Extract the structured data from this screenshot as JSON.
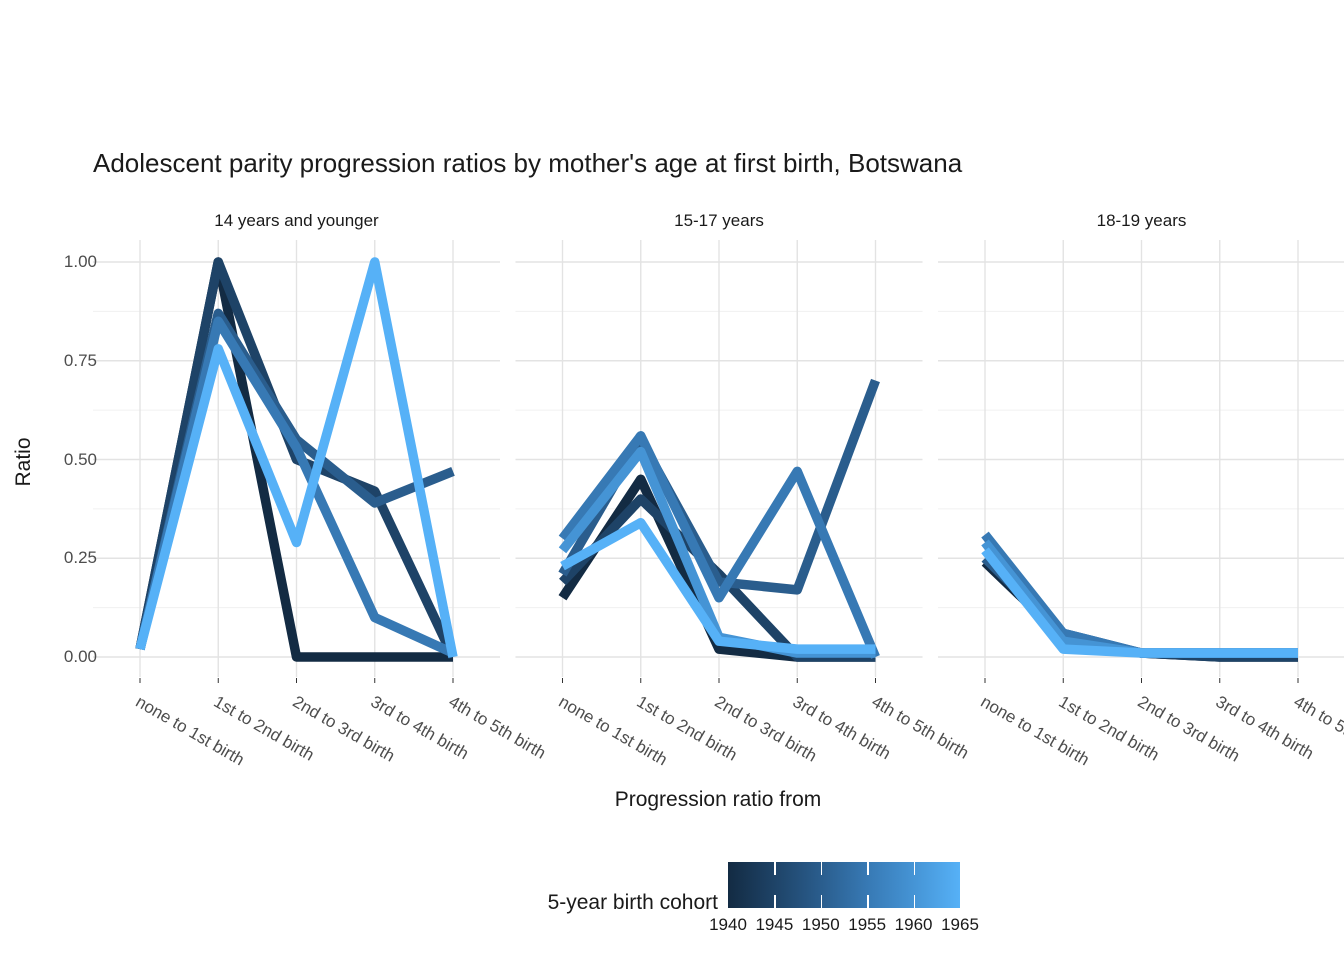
{
  "title": "Adolescent parity progression ratios by mother's age at first birth,  Botswana",
  "y_axis": {
    "title": "Ratio",
    "tick_labels": [
      "0.00",
      "0.25",
      "0.50",
      "0.75",
      "1.00"
    ]
  },
  "x_axis": {
    "title": "Progression ratio from"
  },
  "legend": {
    "title": "5-year birth cohort",
    "tick_labels": [
      "1940",
      "1945",
      "1950",
      "1955",
      "1960",
      "1965"
    ],
    "gradient_stops": [
      "#132B43",
      "#1E4367",
      "#2A5D8D",
      "#3779B4",
      "#4594D5",
      "#56B1F7"
    ]
  },
  "chart_data": {
    "type": "line",
    "title": "Adolescent parity progression ratios by mother's age at first birth,  Botswana",
    "xlabel": "Progression ratio from",
    "ylabel": "Ratio",
    "ylim": [
      0,
      1
    ],
    "y_ticks": [
      0,
      0.25,
      0.5,
      0.75,
      1.0
    ],
    "grid": "on",
    "legend_position": "bottom",
    "color_scale": {
      "label": "5-year birth cohort",
      "low": "#132B43",
      "high": "#56B1F7"
    },
    "categories": [
      "none to 1st birth",
      "1st to 2nd birth",
      "2nd to 3rd birth",
      "3rd to 4th birth",
      "4th to 5th birth"
    ],
    "facets": [
      {
        "label": "14 years and younger",
        "series": [
          {
            "name": "1940",
            "color": "#132B43",
            "values": [
              0.02,
              1.0,
              0.0,
              0.0,
              0.0
            ]
          },
          {
            "name": "1945",
            "color": "#1E4367",
            "values": [
              0.02,
              1.0,
              0.5,
              0.42,
              0.0
            ]
          },
          {
            "name": "1950",
            "color": "#2A5D8D",
            "values": [
              0.02,
              0.87,
              0.55,
              0.39,
              0.47
            ]
          },
          {
            "name": "1955",
            "color": "#3779B4",
            "values": [
              0.02,
              0.85,
              0.53,
              0.1,
              0.01
            ]
          },
          {
            "name": "1965",
            "color": "#56B1F7",
            "values": [
              0.02,
              0.78,
              0.29,
              1.0,
              0.0
            ]
          }
        ]
      },
      {
        "label": "15-17 years",
        "series": [
          {
            "name": "1940",
            "color": "#132B43",
            "values": [
              0.15,
              0.45,
              0.02,
              0.0,
              0.0
            ]
          },
          {
            "name": "1945",
            "color": "#1E4367",
            "values": [
              0.19,
              0.4,
              0.21,
              0.0,
              0.0
            ]
          },
          {
            "name": "1950",
            "color": "#2A5D8D",
            "values": [
              0.21,
              0.55,
              0.19,
              0.17,
              0.7
            ]
          },
          {
            "name": "1955",
            "color": "#3779B4",
            "values": [
              0.3,
              0.56,
              0.15,
              0.47,
              0.0
            ]
          },
          {
            "name": "1960",
            "color": "#4594D5",
            "values": [
              0.27,
              0.52,
              0.05,
              0.01,
              0.01
            ]
          },
          {
            "name": "1965",
            "color": "#56B1F7",
            "values": [
              0.23,
              0.34,
              0.04,
              0.02,
              0.02
            ]
          }
        ]
      },
      {
        "label": "18-19 years",
        "series": [
          {
            "name": "1940",
            "color": "#132B43",
            "values": [
              0.24,
              0.05,
              0.01,
              0.0,
              0.0
            ]
          },
          {
            "name": "1945",
            "color": "#1E4367",
            "values": [
              0.25,
              0.05,
              0.01,
              0.0,
              0.0
            ]
          },
          {
            "name": "1950",
            "color": "#2A5D8D",
            "values": [
              0.25,
              0.06,
              0.01,
              0.01,
              0.01
            ]
          },
          {
            "name": "1955",
            "color": "#3779B4",
            "values": [
              0.31,
              0.06,
              0.01,
              0.01,
              0.01
            ]
          },
          {
            "name": "1960",
            "color": "#4594D5",
            "values": [
              0.29,
              0.04,
              0.01,
              0.01,
              0.01
            ]
          },
          {
            "name": "1965",
            "color": "#56B1F7",
            "values": [
              0.27,
              0.02,
              0.01,
              0.01,
              0.01
            ]
          }
        ]
      }
    ]
  }
}
